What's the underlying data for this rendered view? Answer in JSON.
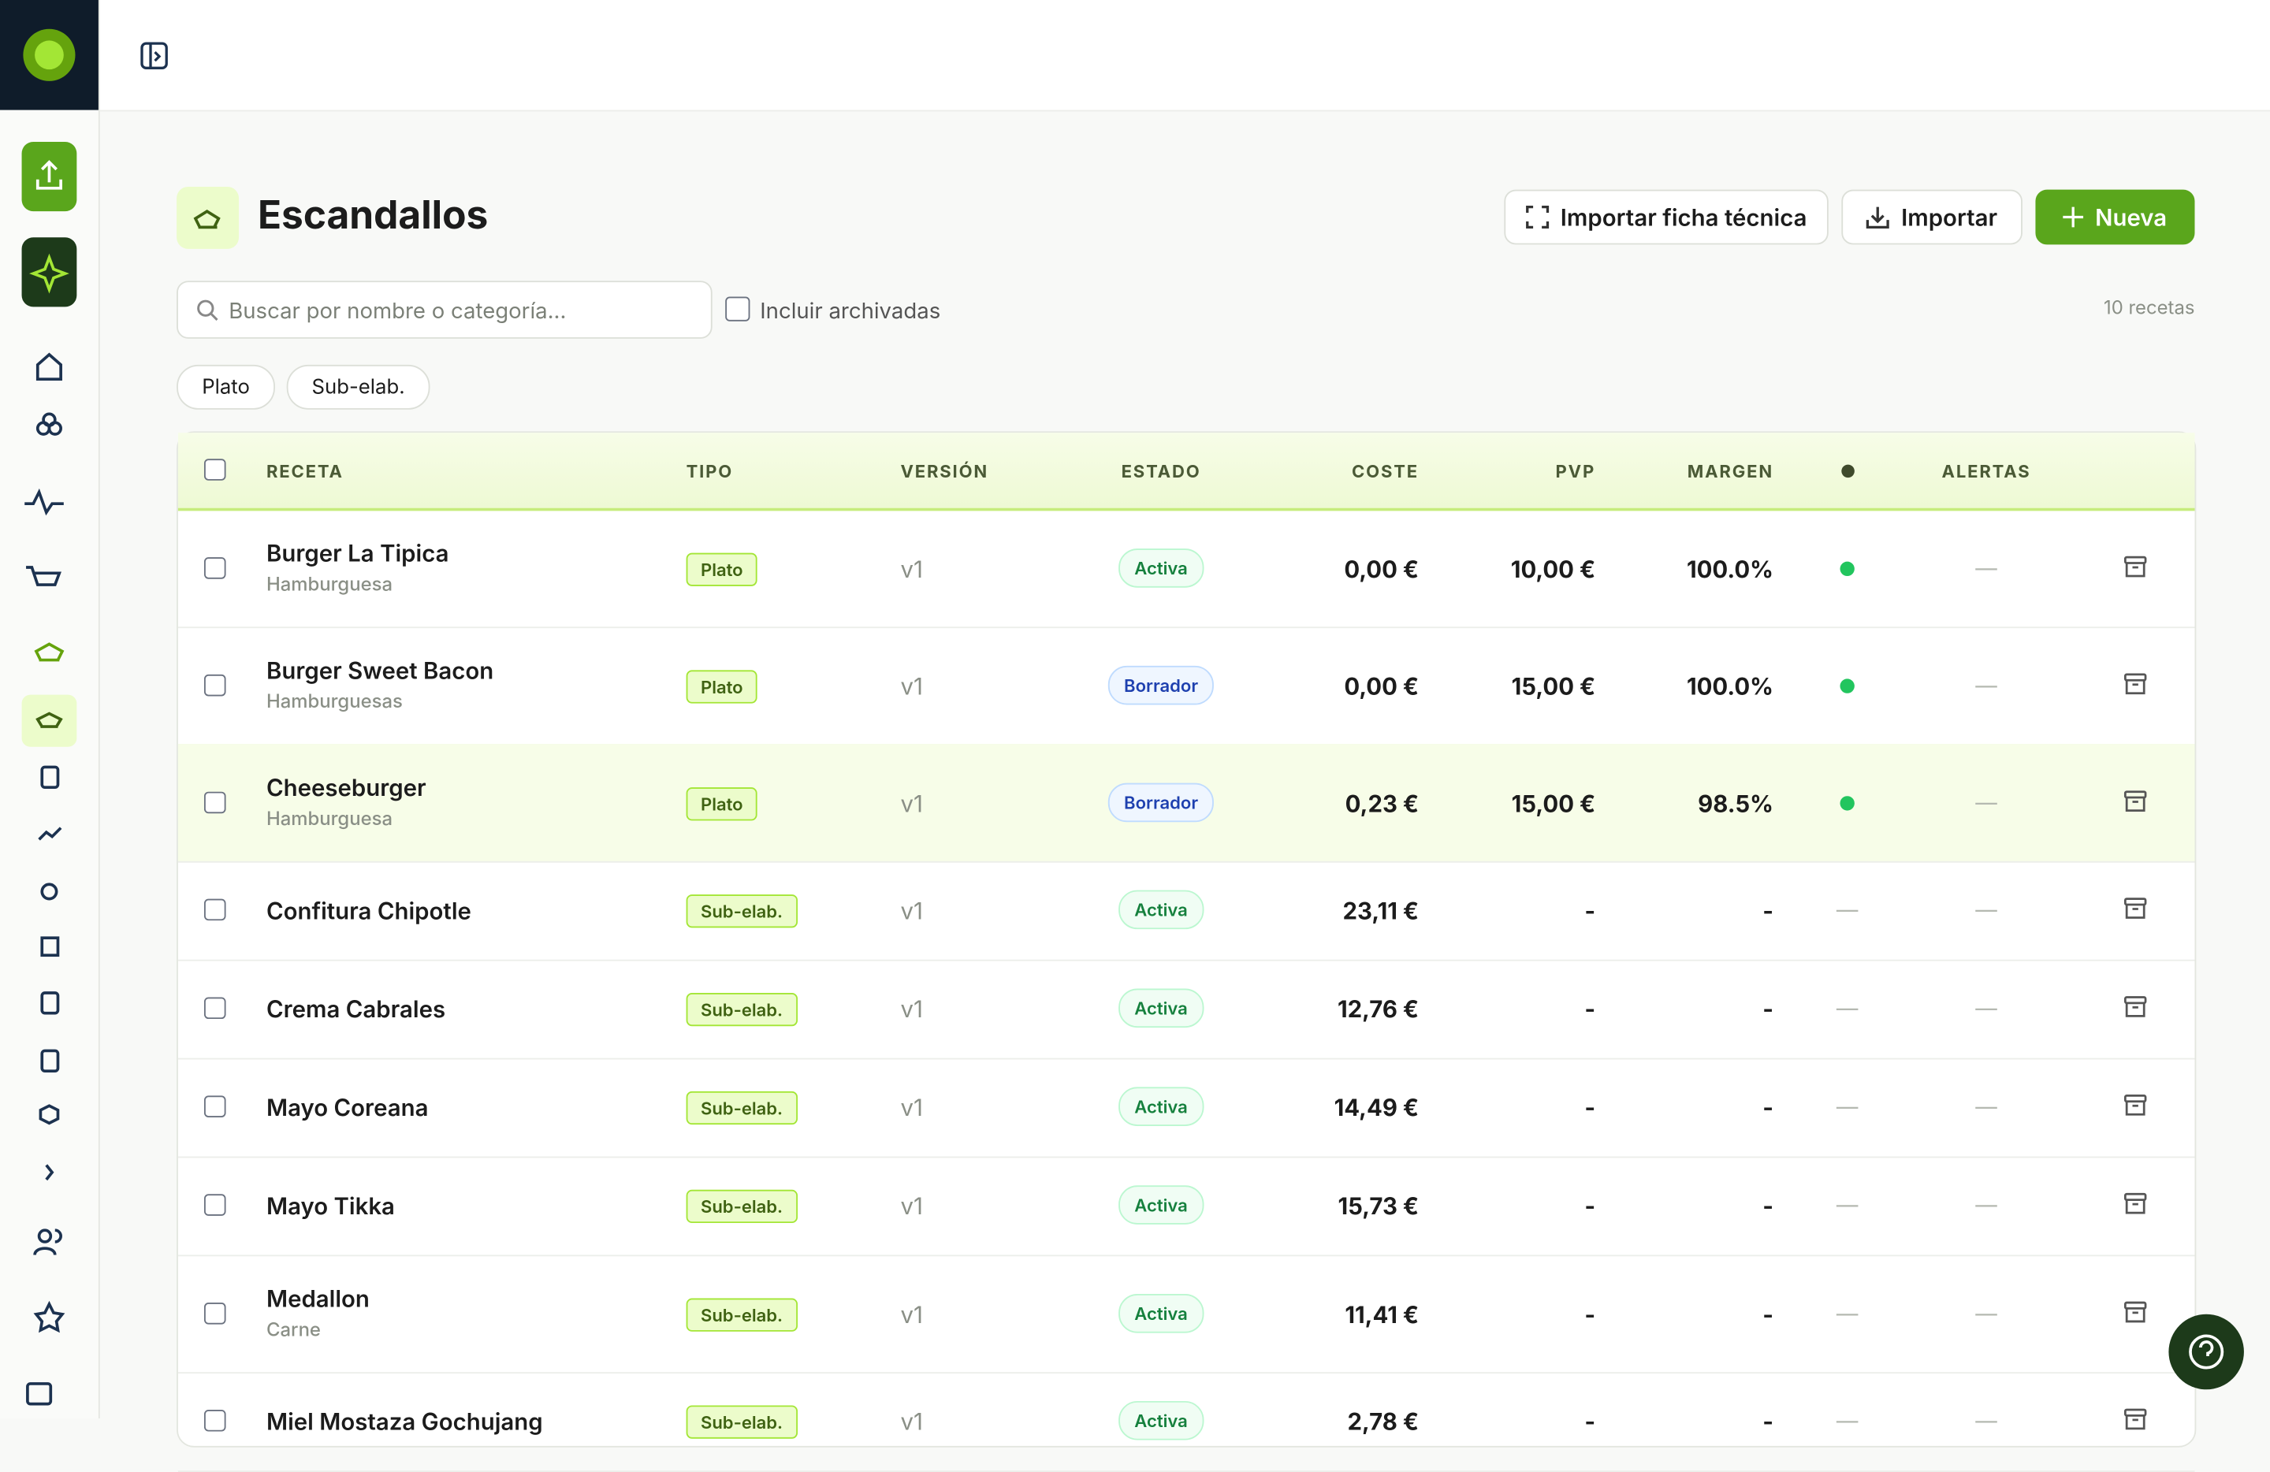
{
  "header": {
    "title": "Escandallos",
    "buttons": [
      "Importar ficha técnica",
      "Importar",
      "Nueva"
    ]
  },
  "toolbar": {
    "search_placeholder": "Buscar por nombre o categoría...",
    "archived_label": "Incluir archivadas",
    "count": "10 recetas",
    "filters": [
      "Plato",
      "Sub-elab."
    ]
  },
  "table": {
    "columns": [
      "RECETA",
      "TIPO",
      "VERSIÓN",
      "ESTADO",
      "COSTE",
      "PVP",
      "MARGEN",
      "ALERTAS"
    ],
    "rows": [
      {
        "name": "Burger La Tipica",
        "category": "Hamburguesa",
        "type": "Plato",
        "version": "v1",
        "status": "Activa",
        "status_color": "green",
        "cost": "0,00 €",
        "pvp": "10,00 €",
        "margin": "100.0%",
        "indicator_color": "#22c55e",
        "alerts": "—"
      },
      {
        "name": "Burger Sweet Bacon",
        "category": "Hamburguesas",
        "type": "Plato",
        "version": "v1",
        "status": "Borrador",
        "status_color": "blue",
        "cost": "0,00 €",
        "pvp": "15,00 €",
        "margin": "100.0%",
        "indicator_color": "#22c55e",
        "alerts": "—"
      },
      {
        "name": "Cheeseburger",
        "category": "Hamburguesa",
        "type": "Plato",
        "version": "v1",
        "status": "Borrador",
        "status_color": "blue",
        "cost": "0,23 €",
        "pvp": "15,00 €",
        "margin": "98.5%",
        "indicator_color": "#22c55e",
        "alerts": "—",
        "highlighted": true
      },
      {
        "name": "Confitura Chipotle",
        "type": "Sub-elab.",
        "version": "v1",
        "status": "Activa",
        "status_color": "green",
        "cost": "23,11 €",
        "pvp": "-",
        "margin": "-",
        "indicator": "—",
        "alerts": "—"
      },
      {
        "name": "Crema Cabrales",
        "type": "Sub-elab.",
        "version": "v1",
        "status": "Activa",
        "status_color": "green",
        "cost": "12,76 €",
        "pvp": "-",
        "margin": "-",
        "indicator": "—",
        "alerts": "—"
      },
      {
        "name": "Mayo Coreana",
        "type": "Sub-elab.",
        "version": "v1",
        "status": "Activa",
        "status_color": "green",
        "cost": "14,49 €",
        "pvp": "-",
        "margin": "-",
        "indicator": "—",
        "alerts": "—"
      },
      {
        "name": "Mayo Tikka",
        "type": "Sub-elab.",
        "version": "v1",
        "status": "Activa",
        "status_color": "green",
        "cost": "15,73 €",
        "pvp": "-",
        "margin": "-",
        "indicator": "—",
        "alerts": "—"
      },
      {
        "name": "Medallon",
        "category": "Carne",
        "type": "Sub-elab.",
        "version": "v1",
        "status": "Activa",
        "status_color": "green",
        "cost": "11,41 €",
        "pvp": "-",
        "margin": "-",
        "indicator": "—",
        "alerts": "—"
      },
      {
        "name": "Miel Mostaza Gochujang",
        "type": "Sub-elab.",
        "version": "v1",
        "status": "Activa",
        "status_color": "green",
        "cost": "2,78 €",
        "pvp": "-",
        "margin": "-",
        "indicator": "—",
        "alerts": "—"
      }
    ]
  }
}
